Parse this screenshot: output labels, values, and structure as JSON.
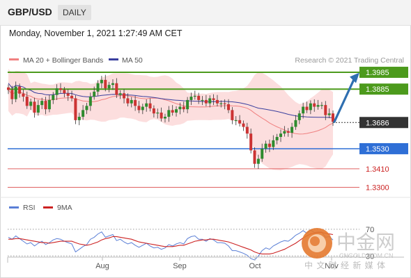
{
  "header": {
    "pair": "GBP/USD",
    "timeframe": "DAILY"
  },
  "datetime": "Monday, November 1, 2021 1:27:49 AM CET",
  "legend": {
    "ma20": "MA 20 + Bollinger Bands",
    "ma50": "MA 50",
    "credit": "Research © 2021 Trading Central"
  },
  "rsi_legend": {
    "rsi": "RSI",
    "ma": "9MA"
  },
  "watermark": {
    "name": "中金网",
    "domain": "CNGOLD.COM.CN",
    "sub": "中 文 财 经 新 媒 体"
  },
  "colors": {
    "green_level": "#4c9a1c",
    "blue_level": "#2f6fd6",
    "red_level": "#e06060",
    "current_price": "#333333",
    "bollinger_fill": "#fbd8d8",
    "ma20": "#f08080",
    "ma50": "#3a3f9e",
    "candle_up": "#2e8b2e",
    "candle_down": "#cc3333",
    "arrow": "#2f6fb0"
  },
  "chart_data": {
    "type": "candlestick",
    "x_tick_labels": [
      "Aug",
      "Sep",
      "Oct",
      "Nov"
    ],
    "y_range": [
      1.324,
      1.401
    ],
    "levels": [
      {
        "label": "1.3985",
        "value": 1.3985,
        "kind": "resistance-2",
        "style": "green"
      },
      {
        "label": "1.3885",
        "value": 1.3885,
        "kind": "resistance-1",
        "style": "green"
      },
      {
        "label": "1.3686",
        "value": 1.3686,
        "kind": "current",
        "style": "dark"
      },
      {
        "label": "1.3530",
        "value": 1.353,
        "kind": "pivot",
        "style": "blue"
      },
      {
        "label": "1.3410",
        "value": 1.341,
        "kind": "support-1",
        "style": "red"
      },
      {
        "label": "1.3300",
        "value": 1.33,
        "kind": "support-2",
        "style": "red"
      }
    ],
    "close": [
      1.388,
      1.3825,
      1.39,
      1.3858,
      1.384,
      1.3785,
      1.381,
      1.3745,
      1.379,
      1.3815,
      1.3765,
      1.382,
      1.385,
      1.389,
      1.388,
      1.386,
      1.3845,
      1.383,
      1.37,
      1.372,
      1.376,
      1.3785,
      1.384,
      1.387,
      1.392,
      1.394,
      1.389,
      1.391,
      1.392,
      1.385,
      1.386,
      1.383,
      1.38,
      1.382,
      1.3785,
      1.376,
      1.378,
      1.38,
      1.377,
      1.374,
      1.3745,
      1.371,
      1.372,
      1.376,
      1.3745,
      1.3765,
      1.378,
      1.3765,
      1.382,
      1.384,
      1.3845,
      1.382,
      1.382,
      1.38,
      1.383,
      1.382,
      1.38,
      1.38,
      1.3795,
      1.376,
      1.37,
      1.37,
      1.368,
      1.366,
      1.362,
      1.352,
      1.344,
      1.347,
      1.353,
      1.356,
      1.354,
      1.358,
      1.36,
      1.362,
      1.3635,
      1.3625,
      1.366,
      1.37,
      1.374,
      1.378,
      1.376,
      1.38,
      1.378,
      1.379,
      1.379,
      1.373,
      1.374,
      1.369
    ],
    "rsi_levels": [
      70,
      30
    ],
    "rsi_ylim": [
      0,
      100
    ],
    "rsi": [
      58,
      55,
      60,
      56,
      52,
      48,
      50,
      45,
      49,
      52,
      47,
      50,
      54,
      56,
      55,
      52,
      50,
      48,
      36,
      40,
      44,
      47,
      55,
      58,
      63,
      66,
      58,
      60,
      62,
      53,
      55,
      51,
      48,
      50,
      46,
      43,
      46,
      49,
      45,
      42,
      43,
      40,
      42,
      47,
      45,
      48,
      50,
      48,
      56,
      59,
      60,
      55,
      55,
      52,
      56,
      54,
      50,
      50,
      49,
      45,
      38,
      38,
      36,
      34,
      31,
      26,
      24,
      30,
      38,
      42,
      40,
      45,
      48,
      51,
      53,
      52,
      56,
      61,
      64,
      68,
      64,
      69,
      65,
      66,
      66,
      58,
      59,
      54
    ],
    "rsi_ma": [
      55,
      55,
      56,
      56,
      55,
      54,
      53,
      52,
      51,
      50,
      50,
      49,
      50,
      51,
      52,
      52,
      52,
      52,
      50,
      48,
      47,
      46,
      47,
      49,
      51,
      54,
      56,
      57,
      59,
      59,
      58,
      57,
      56,
      55,
      53,
      51,
      50,
      49,
      48,
      47,
      46,
      45,
      44,
      44,
      44,
      45,
      46,
      46,
      48,
      50,
      52,
      53,
      54,
      54,
      55,
      55,
      54,
      53,
      52,
      51,
      49,
      47,
      45,
      43,
      41,
      39,
      36,
      34,
      33,
      33,
      33,
      34,
      36,
      38,
      40,
      43,
      46,
      49,
      53,
      57,
      60,
      63,
      64,
      65,
      65,
      64,
      63,
      62
    ]
  }
}
